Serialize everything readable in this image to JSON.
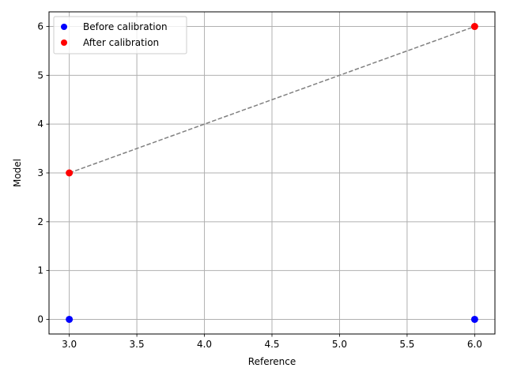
{
  "chart_data": {
    "type": "scatter",
    "xlabel": "Reference",
    "ylabel": "Model",
    "xlim": [
      2.85,
      6.15
    ],
    "ylim": [
      -0.3,
      6.3
    ],
    "xticks": [
      3.0,
      3.5,
      4.0,
      4.5,
      5.0,
      5.5,
      6.0
    ],
    "xtick_labels": [
      "3.0",
      "3.5",
      "4.0",
      "4.5",
      "5.0",
      "5.5",
      "6.0"
    ],
    "yticks": [
      0,
      1,
      2,
      3,
      4,
      5,
      6
    ],
    "ytick_labels": [
      "0",
      "1",
      "2",
      "3",
      "4",
      "5",
      "6"
    ],
    "grid": true,
    "legend_position": "top-left",
    "series": [
      {
        "name": "Before calibration",
        "color": "#0000ff",
        "x": [
          3,
          6
        ],
        "y": [
          0,
          0
        ]
      },
      {
        "name": "After calibration",
        "color": "#ff0000",
        "x": [
          3,
          6
        ],
        "y": [
          3,
          6
        ]
      }
    ],
    "reference_line": {
      "x": [
        3,
        6
      ],
      "y": [
        3,
        6
      ],
      "color": "#808080",
      "style": "dashed"
    }
  }
}
